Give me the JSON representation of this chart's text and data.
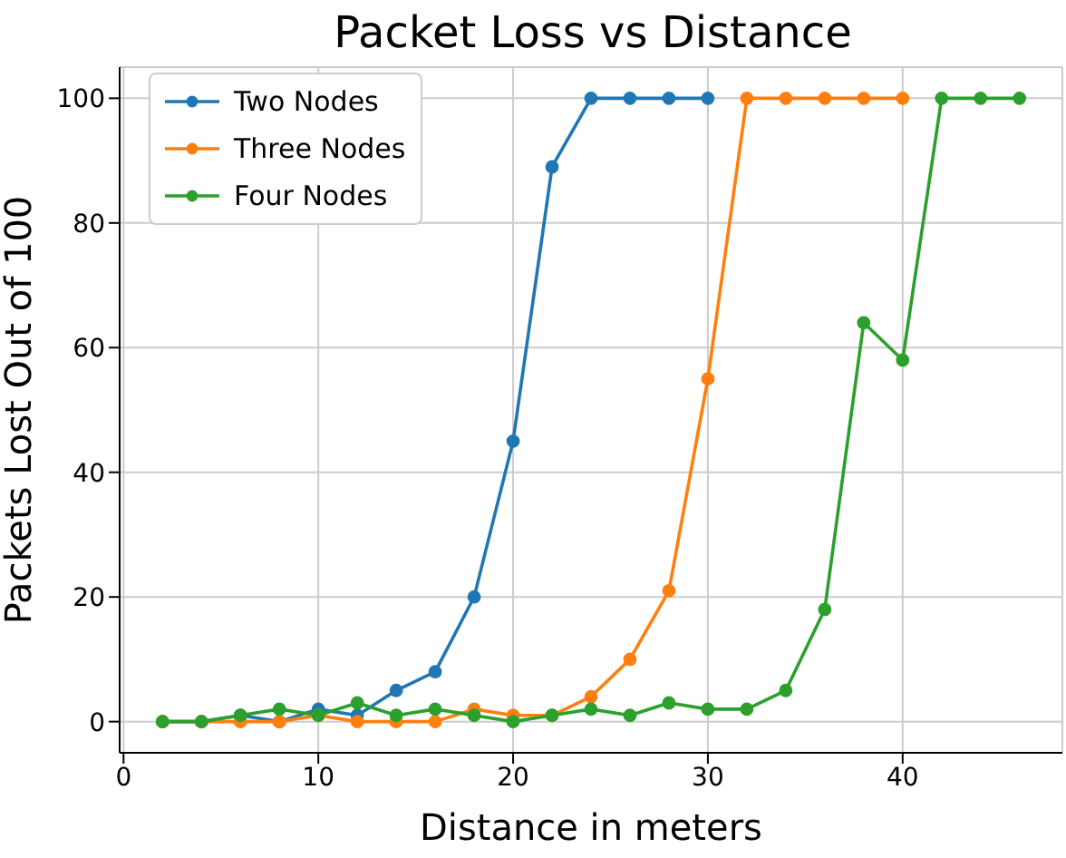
{
  "chart_data": {
    "type": "line",
    "title": "Packet Loss vs Distance",
    "xlabel": "Distance in meters",
    "ylabel": "Packets Lost Out of 100",
    "x": [
      2,
      4,
      6,
      8,
      10,
      12,
      14,
      16,
      18,
      20,
      22,
      24,
      26,
      28,
      30,
      32,
      34,
      36,
      38,
      40,
      42,
      44,
      46
    ],
    "series": [
      {
        "name": "Two Nodes",
        "color": "#1f77b4",
        "values": [
          0,
          0,
          1,
          0,
          2,
          1,
          5,
          8,
          20,
          45,
          89,
          100,
          100,
          100,
          100,
          null,
          null,
          null,
          null,
          null,
          null,
          null,
          null
        ]
      },
      {
        "name": "Three Nodes",
        "color": "#ff7f0e",
        "values": [
          0,
          0,
          0,
          0,
          1,
          0,
          0,
          0,
          2,
          1,
          1,
          4,
          10,
          21,
          55,
          100,
          100,
          100,
          100,
          100,
          null,
          null,
          null
        ]
      },
      {
        "name": "Four Nodes",
        "color": "#2ca02c",
        "values": [
          0,
          0,
          1,
          2,
          1,
          3,
          1,
          2,
          1,
          0,
          1,
          2,
          1,
          3,
          2,
          2,
          5,
          18,
          64,
          58,
          100,
          100,
          100
        ]
      }
    ],
    "xlim": [
      -0.2,
      48.2
    ],
    "xticks": [
      0,
      10,
      20,
      30,
      40
    ],
    "ylim": [
      -5,
      105
    ],
    "yticks": [
      0,
      20,
      40,
      60,
      80,
      100
    ],
    "grid": true,
    "legend": "top left",
    "marker": "circle",
    "line_style": "solid"
  }
}
